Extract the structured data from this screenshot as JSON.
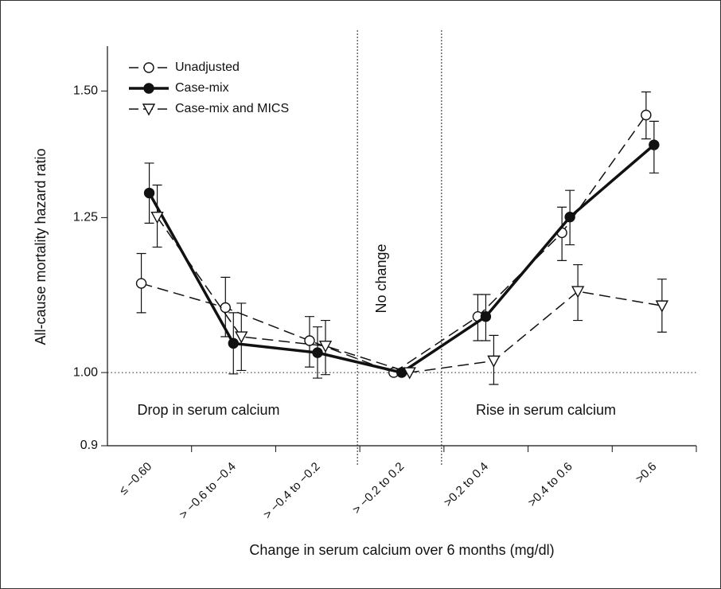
{
  "chart_data": {
    "type": "line",
    "x_label": "Change in serum calcium over 6 months (mg/dl)",
    "y_label": "All-cause mortality hazard ratio",
    "categories": [
      "≤ −0.60",
      "> −0.6 to −0.4",
      "> −0.4 to −0.2",
      "> −0.2 to 0.2",
      ">0.2 to 0.4",
      ">0.4 to 0.6",
      ">0.6"
    ],
    "y_scale": "log",
    "ylim": [
      0.9,
      1.6
    ],
    "yticks": [
      0.9,
      {
        "value": 1.0,
        "label": "1.00"
      },
      1.25,
      {
        "value": 1.5,
        "label": "1.50"
      }
    ],
    "reference_line": 1.0,
    "annotations": [
      "No change",
      "Drop in serum calcium",
      "Rise in serum calcium"
    ],
    "legend": "upper left",
    "series": [
      {
        "name": "Unadjusted",
        "color": "#111111",
        "line_style": "dashed",
        "marker": "circle-open",
        "values": [
          1.137,
          1.098,
          1.047,
          1.0,
          1.084,
          1.223,
          1.449
        ],
        "lower": [
          1.09,
          1.053,
          1.008,
          null,
          1.047,
          1.175,
          1.4
        ],
        "upper": [
          1.187,
          1.147,
          1.084,
          null,
          1.119,
          1.269,
          1.498
        ]
      },
      {
        "name": "Case-mix",
        "color": "#111111",
        "line_style": "solid",
        "marker": "circle-filled",
        "values": [
          1.295,
          1.043,
          1.029,
          1.0,
          1.084,
          1.251,
          1.388
        ],
        "lower": [
          1.24,
          0.998,
          0.992,
          null,
          1.047,
          1.202,
          1.333
        ],
        "upper": [
          1.352,
          1.09,
          1.068,
          null,
          1.119,
          1.3,
          1.436
        ]
      },
      {
        "name": "Case-mix and MICS",
        "color": "#111111",
        "line_style": "dashed",
        "marker": "triangle-down-open",
        "values": [
          1.251,
          1.053,
          1.039,
          1.0,
          1.017,
          1.124,
          1.101
        ],
        "lower": [
          1.198,
          1.003,
          0.997,
          null,
          0.983,
          1.078,
          1.06
        ],
        "upper": [
          1.31,
          1.105,
          1.078,
          null,
          1.055,
          1.168,
          1.144
        ]
      }
    ]
  }
}
